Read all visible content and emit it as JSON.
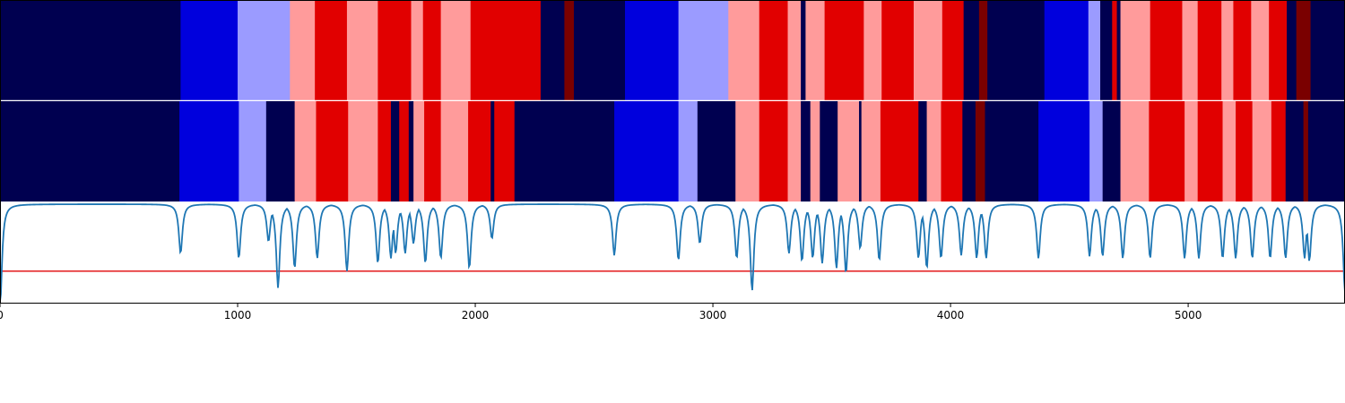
{
  "chart_data": {
    "type": "heatmap",
    "title": "",
    "xlabel": "",
    "ylabel": "",
    "xlim": [
      0,
      5660
    ],
    "x_ticks": [
      0,
      1000,
      2000,
      3000,
      4000,
      5000
    ],
    "x_tick_labels": [
      "0",
      "1000",
      "2000",
      "3000",
      "4000",
      "5000"
    ],
    "colors": {
      "0": "#000050",
      "1": "#0000dd",
      "2": "#9b9bff",
      "3": "#ff9b9b",
      "4": "#e10000",
      "5": "#7a0000",
      "curve": "#1f77b4",
      "threshold": "#e31a1c"
    },
    "tracks": [
      {
        "segments": [
          [
            0,
            760,
            0
          ],
          [
            760,
            1000,
            1
          ],
          [
            1000,
            1220,
            2
          ],
          [
            1220,
            1325,
            3
          ],
          [
            1325,
            1460,
            4
          ],
          [
            1460,
            1590,
            3
          ],
          [
            1590,
            1730,
            4
          ],
          [
            1730,
            1780,
            3
          ],
          [
            1780,
            1855,
            4
          ],
          [
            1855,
            1980,
            3
          ],
          [
            1980,
            2275,
            4
          ],
          [
            2275,
            2375,
            0
          ],
          [
            2375,
            2415,
            5
          ],
          [
            2415,
            2630,
            0
          ],
          [
            2630,
            2855,
            1
          ],
          [
            2855,
            3065,
            2
          ],
          [
            3065,
            3195,
            3
          ],
          [
            3195,
            3315,
            4
          ],
          [
            3315,
            3370,
            3
          ],
          [
            3370,
            3390,
            0
          ],
          [
            3390,
            3470,
            3
          ],
          [
            3470,
            3635,
            4
          ],
          [
            3635,
            3710,
            3
          ],
          [
            3710,
            3845,
            4
          ],
          [
            3845,
            3965,
            3
          ],
          [
            3965,
            4055,
            4
          ],
          [
            4055,
            4120,
            0
          ],
          [
            4120,
            4155,
            5
          ],
          [
            4155,
            4395,
            0
          ],
          [
            4395,
            4580,
            1
          ],
          [
            4580,
            4630,
            2
          ],
          [
            4630,
            4680,
            0
          ],
          [
            4680,
            4700,
            4
          ],
          [
            4700,
            4715,
            0
          ],
          [
            4715,
            4840,
            3
          ],
          [
            4840,
            4975,
            4
          ],
          [
            4975,
            5040,
            3
          ],
          [
            5040,
            5140,
            4
          ],
          [
            5140,
            5190,
            3
          ],
          [
            5190,
            5265,
            4
          ],
          [
            5265,
            5340,
            3
          ],
          [
            5340,
            5415,
            4
          ],
          [
            5415,
            5455,
            0
          ],
          [
            5455,
            5515,
            5
          ],
          [
            5515,
            5660,
            0
          ]
        ]
      },
      {
        "segments": [
          [
            0,
            755,
            0
          ],
          [
            755,
            1005,
            1
          ],
          [
            1005,
            1120,
            2
          ],
          [
            1120,
            1240,
            0
          ],
          [
            1240,
            1330,
            3
          ],
          [
            1330,
            1465,
            4
          ],
          [
            1465,
            1590,
            3
          ],
          [
            1590,
            1645,
            4
          ],
          [
            1645,
            1680,
            0
          ],
          [
            1680,
            1720,
            4
          ],
          [
            1720,
            1740,
            0
          ],
          [
            1740,
            1785,
            3
          ],
          [
            1785,
            1855,
            4
          ],
          [
            1855,
            1970,
            3
          ],
          [
            1970,
            2065,
            4
          ],
          [
            2065,
            2080,
            0
          ],
          [
            2080,
            2165,
            4
          ],
          [
            2165,
            2585,
            0
          ],
          [
            2585,
            2855,
            1
          ],
          [
            2855,
            2935,
            2
          ],
          [
            2935,
            3095,
            0
          ],
          [
            3095,
            3195,
            3
          ],
          [
            3195,
            3315,
            4
          ],
          [
            3315,
            3370,
            3
          ],
          [
            3370,
            3410,
            0
          ],
          [
            3410,
            3450,
            3
          ],
          [
            3450,
            3525,
            0
          ],
          [
            3525,
            3615,
            3
          ],
          [
            3615,
            3625,
            0
          ],
          [
            3625,
            3705,
            3
          ],
          [
            3705,
            3865,
            4
          ],
          [
            3865,
            3900,
            0
          ],
          [
            3900,
            3960,
            3
          ],
          [
            3960,
            4050,
            4
          ],
          [
            4050,
            4105,
            0
          ],
          [
            4105,
            4145,
            5
          ],
          [
            4145,
            4370,
            0
          ],
          [
            4370,
            4585,
            1
          ],
          [
            4585,
            4640,
            2
          ],
          [
            4640,
            4715,
            0
          ],
          [
            4715,
            4835,
            3
          ],
          [
            4835,
            4985,
            4
          ],
          [
            4985,
            5040,
            3
          ],
          [
            5040,
            5145,
            4
          ],
          [
            5145,
            5200,
            3
          ],
          [
            5200,
            5270,
            4
          ],
          [
            5270,
            5350,
            3
          ],
          [
            5350,
            5410,
            4
          ],
          [
            5410,
            5485,
            0
          ],
          [
            5485,
            5505,
            5
          ],
          [
            5505,
            5660,
            0
          ]
        ]
      }
    ],
    "curve": {
      "baseline": 1.0,
      "ylim": [
        0,
        1.0
      ],
      "threshold": 0.32,
      "dips": [
        [
          1,
          0.0
        ],
        [
          760,
          0.5
        ],
        [
          1005,
          0.45
        ],
        [
          1130,
          0.62
        ],
        [
          1170,
          0.15
        ],
        [
          1240,
          0.35
        ],
        [
          1335,
          0.45
        ],
        [
          1460,
          0.32
        ],
        [
          1590,
          0.4
        ],
        [
          1645,
          0.45
        ],
        [
          1665,
          0.5
        ],
        [
          1705,
          0.5
        ],
        [
          1740,
          0.6
        ],
        [
          1790,
          0.4
        ],
        [
          1855,
          0.45
        ],
        [
          1975,
          0.35
        ],
        [
          2070,
          0.65
        ],
        [
          2585,
          0.48
        ],
        [
          2855,
          0.43
        ],
        [
          2945,
          0.6
        ],
        [
          3100,
          0.45
        ],
        [
          3165,
          0.12
        ],
        [
          3320,
          0.5
        ],
        [
          3375,
          0.42
        ],
        [
          3420,
          0.45
        ],
        [
          3460,
          0.4
        ],
        [
          3520,
          0.35
        ],
        [
          3560,
          0.3
        ],
        [
          3620,
          0.55
        ],
        [
          3700,
          0.43
        ],
        [
          3865,
          0.45
        ],
        [
          3900,
          0.35
        ],
        [
          3960,
          0.45
        ],
        [
          4045,
          0.48
        ],
        [
          4110,
          0.45
        ],
        [
          4150,
          0.45
        ],
        [
          4370,
          0.45
        ],
        [
          4585,
          0.47
        ],
        [
          4640,
          0.47
        ],
        [
          4725,
          0.45
        ],
        [
          4840,
          0.45
        ],
        [
          4985,
          0.45
        ],
        [
          5045,
          0.45
        ],
        [
          5145,
          0.45
        ],
        [
          5200,
          0.45
        ],
        [
          5270,
          0.45
        ],
        [
          5345,
          0.45
        ],
        [
          5410,
          0.45
        ],
        [
          5490,
          0.45
        ],
        [
          5510,
          0.42
        ],
        [
          5660,
          0.1
        ]
      ]
    }
  }
}
